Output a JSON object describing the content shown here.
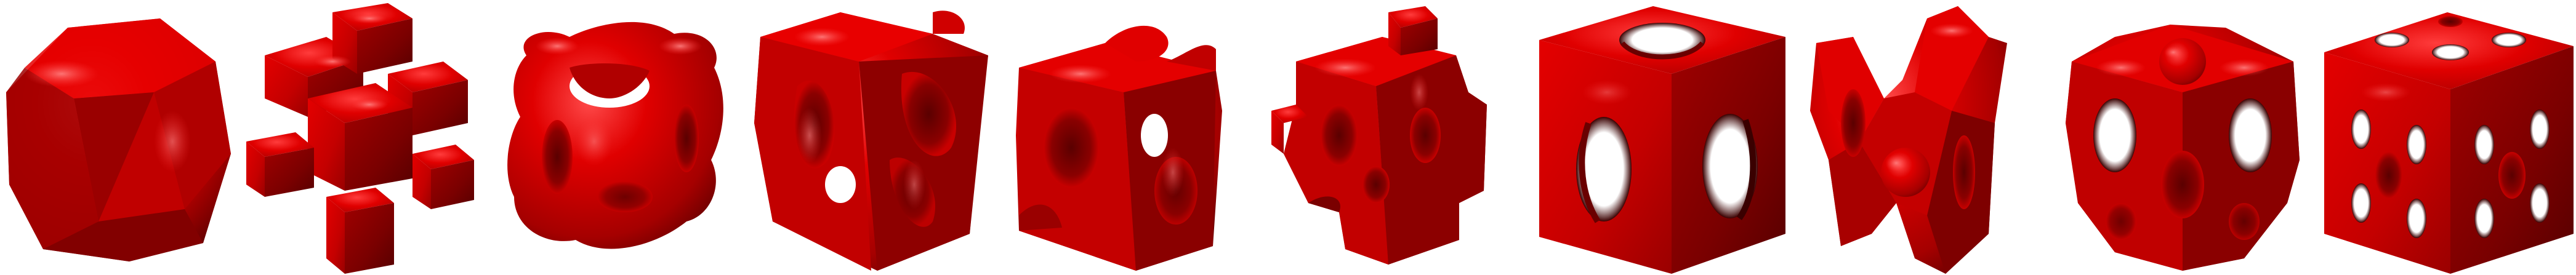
{
  "scene": {
    "background": "#ffffff",
    "colors": {
      "highlight": "#ff3c3c",
      "mid": "#e00000",
      "base": "#c80000",
      "shade": "#8a0000",
      "deep": "#4a0000"
    },
    "shapes": [
      {
        "name": "rounded-truncated-cube"
      },
      {
        "name": "cross-lattice-cube"
      },
      {
        "name": "dumbbell-node-cube"
      },
      {
        "name": "gyroid-cube"
      },
      {
        "name": "saddle-hole-cube"
      },
      {
        "name": "cross-knob-cube"
      },
      {
        "name": "spherical-void-cube"
      },
      {
        "name": "twisted-lattice-cube"
      },
      {
        "name": "lattice-sphere-cube"
      },
      {
        "name": "perforated-cube"
      }
    ]
  }
}
